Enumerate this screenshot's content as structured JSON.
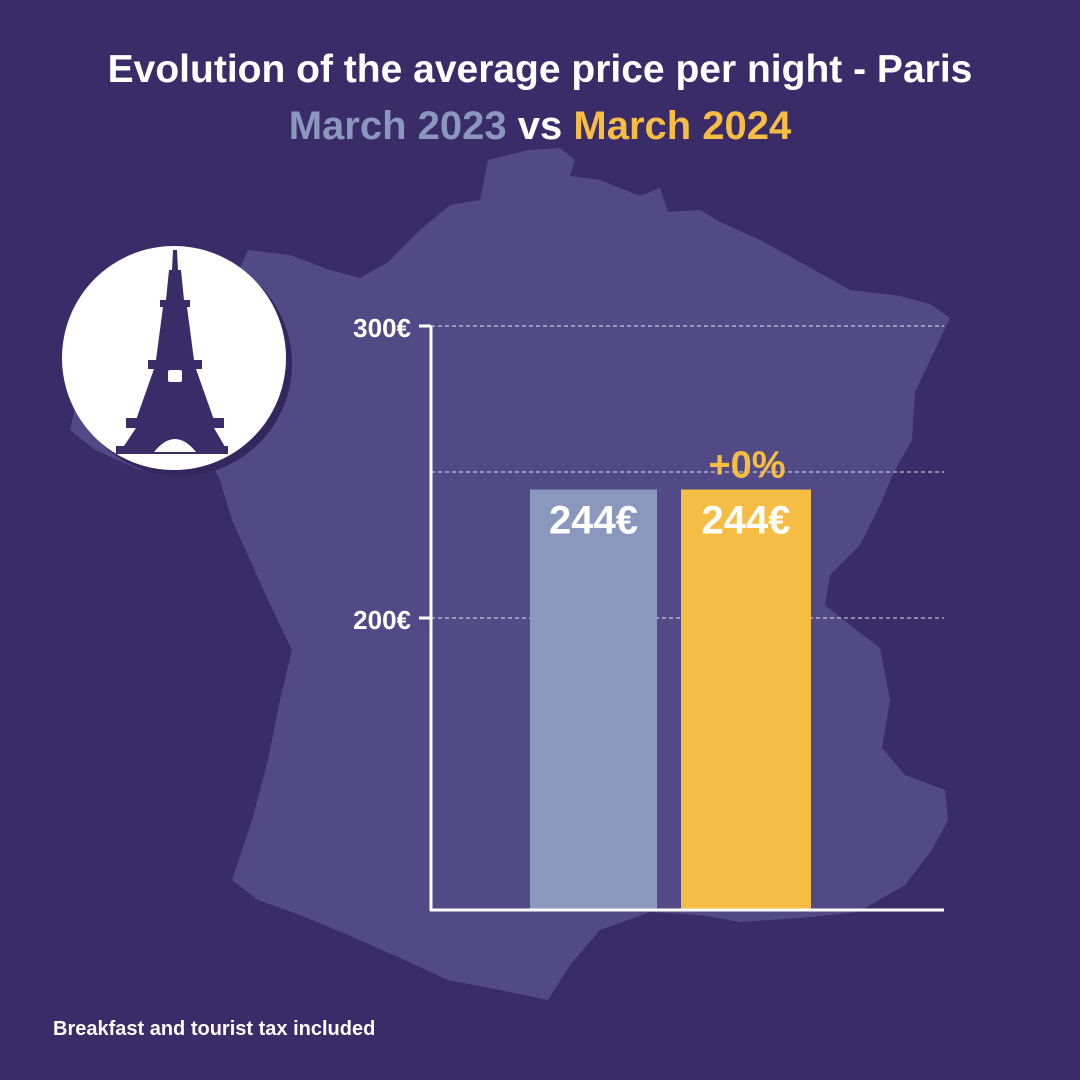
{
  "title": "Evolution of the average price per night - Paris",
  "subtitle": {
    "period_1": "March 2023",
    "connector": "vs",
    "period_2": "March 2024"
  },
  "footnote": "Breakfast and tourist tax included",
  "icons": {
    "badge": "eiffel-tower-icon",
    "background": "france-map-silhouette"
  },
  "colors": {
    "background": "#3a2b69",
    "map": "#524a86",
    "period_1": "#8a98be",
    "period_2": "#f6bd44",
    "axis": "#ffffff",
    "eiffel": "#3a2b69"
  },
  "chart_data": {
    "type": "bar",
    "categories": [
      "March 2023",
      "March 2024"
    ],
    "values": [
      244,
      244
    ],
    "value_labels": [
      "244€",
      "244€"
    ],
    "change_label": "+0%",
    "ylim": [
      100,
      300
    ],
    "yticks": [
      200,
      300
    ],
    "ytick_labels": [
      "200€",
      "300€"
    ],
    "grid": true,
    "colors": [
      "#8a98be",
      "#f6bd44"
    ]
  }
}
